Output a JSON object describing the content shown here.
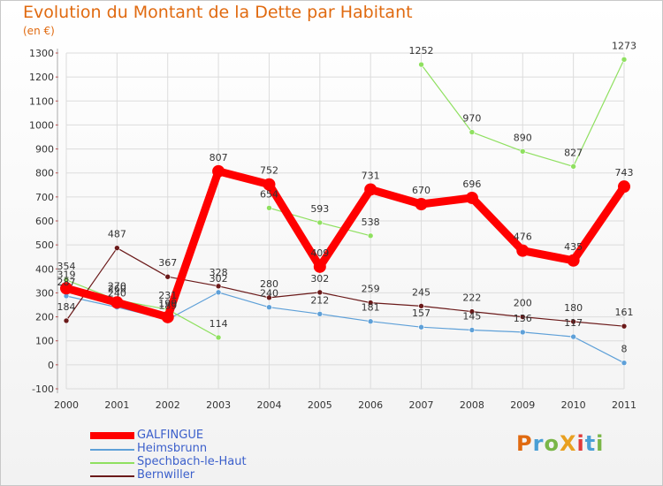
{
  "title": "Evolution du Montant de la Dette par Habitant",
  "subtitle": "(en €)",
  "logo": {
    "text": "ProXiti",
    "colors": [
      "#e06a10",
      "#4a9fd5",
      "#7ab648",
      "#e8a020",
      "#e03a3a",
      "#4a9fd5",
      "#7ab648"
    ]
  },
  "chart_data": {
    "type": "line",
    "x": [
      "2000",
      "2001",
      "2002",
      "2003",
      "2004",
      "2005",
      "2006",
      "2007",
      "2008",
      "2009",
      "2010",
      "2011"
    ],
    "ylim": [
      -100,
      1300
    ],
    "yticks": [
      -100,
      0,
      100,
      200,
      300,
      400,
      500,
      600,
      700,
      800,
      900,
      1000,
      1100,
      1200,
      1300
    ],
    "grid": true,
    "legend_position": "bottom-left",
    "series": [
      {
        "name": "GALFINGUE",
        "color": "#ff0000",
        "width": 9,
        "values": [
          319,
          260,
          199,
          807,
          752,
          409,
          731,
          670,
          696,
          476,
          435,
          743
        ]
      },
      {
        "name": "Heimsbrunn",
        "color": "#5ea0d8",
        "width": 1.2,
        "values": [
          287,
          240,
          189,
          302,
          240,
          212,
          181,
          157,
          145,
          136,
          117,
          8
        ]
      },
      {
        "name": "Spechbach-le-Haut",
        "color": "#8fe060",
        "width": 1.2,
        "values": [
          354,
          270,
          231,
          114,
          654,
          593,
          538,
          1252,
          970,
          890,
          827,
          1273
        ]
      },
      {
        "name": "Bernwiller",
        "color": "#6b1a1a",
        "width": 1.2,
        "values": [
          184,
          487,
          367,
          328,
          280,
          302,
          259,
          245,
          222,
          200,
          180,
          161
        ]
      }
    ],
    "segments": [
      {
        "series": 2,
        "breaks_after": [
          3,
          6
        ]
      }
    ]
  }
}
